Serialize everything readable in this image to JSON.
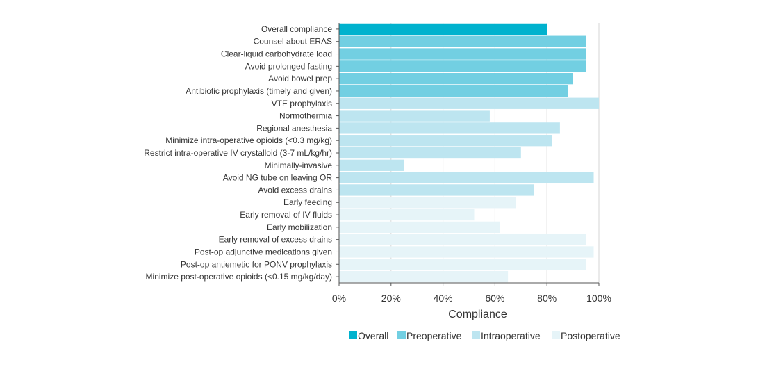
{
  "chart_data": {
    "type": "bar",
    "orientation": "horizontal",
    "xlabel": "Compliance",
    "ylabel": "",
    "xlim": [
      0,
      100
    ],
    "x_unit": "%",
    "ticks": [
      "0%",
      "20%",
      "40%",
      "60%",
      "80%",
      "100%"
    ],
    "grid": true,
    "legend_position": "bottom",
    "legend": [
      {
        "name": "Overall",
        "color": "#00b2ce"
      },
      {
        "name": "Preoperative",
        "color": "#72cfe2"
      },
      {
        "name": "Intraoperative",
        "color": "#bde5f0"
      },
      {
        "name": "Postoperative",
        "color": "#e6f4f8"
      }
    ],
    "categories": [
      "Overall compliance",
      "Counsel about ERAS",
      "Clear-liquid carbohydrate load",
      "Avoid prolonged fasting",
      "Avoid bowel prep",
      "Antibiotic prophylaxis (timely and given)",
      "VTE prophylaxis",
      "Normothermia",
      "Regional anesthesia",
      "Minimize intra-operative opioids (<0.3 mg/kg)",
      "Restrict intra-operative IV crystalloid (3-7 mL/kg/hr)",
      "Minimally-invasive",
      "Avoid NG tube on leaving OR",
      "Avoid excess drains",
      "Early feeding",
      "Early removal of IV fluids",
      "Early mobilization",
      "Early removal of excess drains",
      "Post-op adjunctive medications given",
      "Post-op antiemetic for PONV prophylaxis",
      "Minimize post-operative opioids (<0.15 mg/kg/day)"
    ],
    "values": [
      80,
      95,
      95,
      95,
      90,
      88,
      100,
      58,
      85,
      82,
      70,
      25,
      98,
      75,
      68,
      52,
      62,
      95,
      98,
      95,
      65
    ],
    "groups": [
      "Overall",
      "Preoperative",
      "Preoperative",
      "Preoperative",
      "Preoperative",
      "Preoperative",
      "Intraoperative",
      "Intraoperative",
      "Intraoperative",
      "Intraoperative",
      "Intraoperative",
      "Intraoperative",
      "Intraoperative",
      "Intraoperative",
      "Postoperative",
      "Postoperative",
      "Postoperative",
      "Postoperative",
      "Postoperative",
      "Postoperative",
      "Postoperative"
    ]
  }
}
